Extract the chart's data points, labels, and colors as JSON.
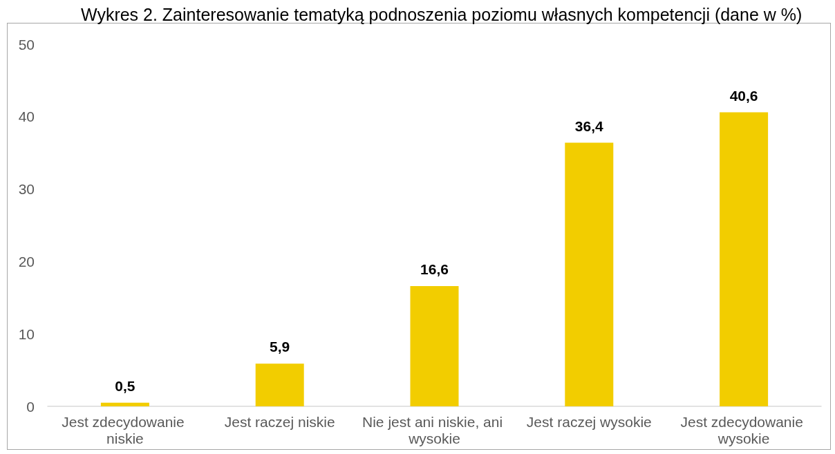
{
  "chart_data": {
    "type": "bar",
    "title": "Wykres 2. Zainteresowanie tematyką podnoszenia poziomu własnych kompetencji (dane w %)",
    "categories": [
      "Jest zdecydowanie niskie",
      "Jest raczej niskie",
      "Nie jest ani niskie, ani wysokie",
      "Jest raczej wysokie",
      "Jest zdecydowanie wysokie"
    ],
    "values": [
      0.5,
      5.9,
      16.6,
      36.4,
      40.6
    ],
    "value_labels": [
      "0,5",
      "5,9",
      "16,6",
      "36,4",
      "40,6"
    ],
    "color": "#f2cd00",
    "ylim": [
      0,
      50
    ],
    "yticks": [
      0,
      10,
      20,
      30,
      40,
      50
    ]
  }
}
